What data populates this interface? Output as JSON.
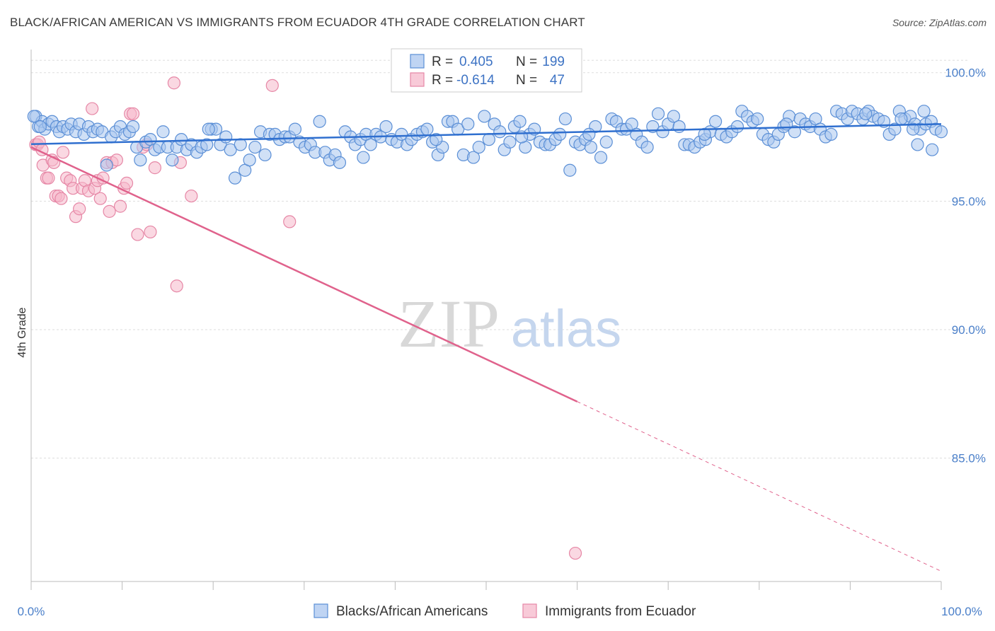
{
  "title": "BLACK/AFRICAN AMERICAN VS IMMIGRANTS FROM ECUADOR 4TH GRADE CORRELATION CHART",
  "source": "Source: ZipAtlas.com",
  "watermark": {
    "zip": "ZIP",
    "atlas": "atlas"
  },
  "colors": {
    "blue_fill": "#a9c6ef",
    "blue_stroke": "#5b8fd6",
    "blue_line": "#2f6fcf",
    "pink_fill": "#f6b8cb",
    "pink_stroke": "#e687a6",
    "pink_line": "#e0628c",
    "grid": "#dddddd",
    "tick_text": "#4a7fc9"
  },
  "legend": {
    "r_label": "R =",
    "n_label": "N =",
    "rows": [
      {
        "r": "0.405",
        "n": "199"
      },
      {
        "r": "-0.614",
        "n": "47"
      }
    ]
  },
  "chart_data": {
    "type": "scatter",
    "title": "BLACK/AFRICAN AMERICAN VS IMMIGRANTS FROM ECUADOR 4TH GRADE CORRELATION CHART",
    "xlabel": "",
    "ylabel": "4th Grade",
    "xlim": [
      0,
      100
    ],
    "ylim": [
      80.2,
      100.9
    ],
    "x_tick_labels": [
      "0.0%",
      "100.0%"
    ],
    "y_ticks": [
      85,
      90,
      95,
      100
    ],
    "y_tick_labels": [
      "85.0%",
      "90.0%",
      "95.0%",
      "100.0%"
    ],
    "grid": true,
    "legend_position": "top-center",
    "series": [
      {
        "name": "Blacks/African Americans",
        "trend": {
          "x": [
            0,
            100
          ],
          "y": [
            97.22,
            98.0
          ]
        },
        "points": [
          [
            0.5,
            98.3
          ],
          [
            0.8,
            97.9
          ],
          [
            1.2,
            98.1
          ],
          [
            1.5,
            97.8
          ],
          [
            1.9,
            98.0
          ],
          [
            2.3,
            98.1
          ],
          [
            2.8,
            97.9
          ],
          [
            3.1,
            97.7
          ],
          [
            3.5,
            97.9
          ],
          [
            4.0,
            97.8
          ],
          [
            4.4,
            98.0
          ],
          [
            4.9,
            97.7
          ],
          [
            5.3,
            98.0
          ],
          [
            5.8,
            97.6
          ],
          [
            6.3,
            97.9
          ],
          [
            6.8,
            97.7
          ],
          [
            7.3,
            97.8
          ],
          [
            7.8,
            97.7
          ],
          [
            8.3,
            96.4
          ],
          [
            8.8,
            97.5
          ],
          [
            9.3,
            97.7
          ],
          [
            9.8,
            97.9
          ],
          [
            10.3,
            97.6
          ],
          [
            10.8,
            97.7
          ],
          [
            11.2,
            97.9
          ],
          [
            11.6,
            97.1
          ],
          [
            12.0,
            96.6
          ],
          [
            12.6,
            97.3
          ],
          [
            13.1,
            97.4
          ],
          [
            13.6,
            97.0
          ],
          [
            14.1,
            97.1
          ],
          [
            14.5,
            97.7
          ],
          [
            15.0,
            97.1
          ],
          [
            15.5,
            96.6
          ],
          [
            16.0,
            97.1
          ],
          [
            16.5,
            97.4
          ],
          [
            17.1,
            97.0
          ],
          [
            17.6,
            97.2
          ],
          [
            18.2,
            96.9
          ],
          [
            18.7,
            97.1
          ],
          [
            19.3,
            97.2
          ],
          [
            19.8,
            97.8
          ],
          [
            20.3,
            97.8
          ],
          [
            20.8,
            97.2
          ],
          [
            21.4,
            97.5
          ],
          [
            21.9,
            97.0
          ],
          [
            22.4,
            95.9
          ],
          [
            23.0,
            97.2
          ],
          [
            23.5,
            96.2
          ],
          [
            24.0,
            96.6
          ],
          [
            24.6,
            97.1
          ],
          [
            25.2,
            97.7
          ],
          [
            25.7,
            96.8
          ],
          [
            26.2,
            97.6
          ],
          [
            26.8,
            97.6
          ],
          [
            27.3,
            97.4
          ],
          [
            27.9,
            97.5
          ],
          [
            28.4,
            97.5
          ],
          [
            29.0,
            97.8
          ],
          [
            29.5,
            97.3
          ],
          [
            30.1,
            97.1
          ],
          [
            30.7,
            97.2
          ],
          [
            31.2,
            96.9
          ],
          [
            31.7,
            98.1
          ],
          [
            32.3,
            96.9
          ],
          [
            32.8,
            96.6
          ],
          [
            33.4,
            96.8
          ],
          [
            33.9,
            96.5
          ],
          [
            34.5,
            97.7
          ],
          [
            35.1,
            97.5
          ],
          [
            35.6,
            97.2
          ],
          [
            36.2,
            97.4
          ],
          [
            36.8,
            97.6
          ],
          [
            37.3,
            97.2
          ],
          [
            37.9,
            97.6
          ],
          [
            38.4,
            97.5
          ],
          [
            39.0,
            97.9
          ],
          [
            39.6,
            97.4
          ],
          [
            40.2,
            97.3
          ],
          [
            40.7,
            97.6
          ],
          [
            41.3,
            97.2
          ],
          [
            41.8,
            97.4
          ],
          [
            42.4,
            97.6
          ],
          [
            43.0,
            97.7
          ],
          [
            43.5,
            97.8
          ],
          [
            44.1,
            97.3
          ],
          [
            44.7,
            96.8
          ],
          [
            45.2,
            97.1
          ],
          [
            45.8,
            98.1
          ],
          [
            46.3,
            98.1
          ],
          [
            46.9,
            97.8
          ],
          [
            47.5,
            96.8
          ],
          [
            48.0,
            98.0
          ],
          [
            48.6,
            96.7
          ],
          [
            49.2,
            97.1
          ],
          [
            49.8,
            98.3
          ],
          [
            50.3,
            97.4
          ],
          [
            50.9,
            98.0
          ],
          [
            51.5,
            97.7
          ],
          [
            52.0,
            97.0
          ],
          [
            52.6,
            97.3
          ],
          [
            53.1,
            97.9
          ],
          [
            53.7,
            98.1
          ],
          [
            54.3,
            97.1
          ],
          [
            54.8,
            97.6
          ],
          [
            55.3,
            97.8
          ],
          [
            55.9,
            97.3
          ],
          [
            56.5,
            97.2
          ],
          [
            57.0,
            97.2
          ],
          [
            57.6,
            97.4
          ],
          [
            58.1,
            97.6
          ],
          [
            58.7,
            98.2
          ],
          [
            59.2,
            96.2
          ],
          [
            59.8,
            97.3
          ],
          [
            60.3,
            97.2
          ],
          [
            60.9,
            97.4
          ],
          [
            61.5,
            97.1
          ],
          [
            62.0,
            97.9
          ],
          [
            62.6,
            96.7
          ],
          [
            63.2,
            97.3
          ],
          [
            63.8,
            98.2
          ],
          [
            64.3,
            98.1
          ],
          [
            64.9,
            97.8
          ],
          [
            65.4,
            97.8
          ],
          [
            66.0,
            98.0
          ],
          [
            66.5,
            97.6
          ],
          [
            67.1,
            97.3
          ],
          [
            67.7,
            97.1
          ],
          [
            68.3,
            97.9
          ],
          [
            68.9,
            98.4
          ],
          [
            69.4,
            97.7
          ],
          [
            70.0,
            98.0
          ],
          [
            70.6,
            98.3
          ],
          [
            71.2,
            97.9
          ],
          [
            71.8,
            97.2
          ],
          [
            72.3,
            97.2
          ],
          [
            72.9,
            97.1
          ],
          [
            73.5,
            97.3
          ],
          [
            74.1,
            97.4
          ],
          [
            74.6,
            97.7
          ],
          [
            75.2,
            98.1
          ],
          [
            75.8,
            97.6
          ],
          [
            76.4,
            97.5
          ],
          [
            77.0,
            97.7
          ],
          [
            77.6,
            97.9
          ],
          [
            78.1,
            98.5
          ],
          [
            78.7,
            98.3
          ],
          [
            79.3,
            98.1
          ],
          [
            79.8,
            98.2
          ],
          [
            80.4,
            97.6
          ],
          [
            81.0,
            97.4
          ],
          [
            81.6,
            97.3
          ],
          [
            82.1,
            97.6
          ],
          [
            82.7,
            97.9
          ],
          [
            83.3,
            98.3
          ],
          [
            83.9,
            97.7
          ],
          [
            84.5,
            98.2
          ],
          [
            85.1,
            98.0
          ],
          [
            85.6,
            97.9
          ],
          [
            86.2,
            98.2
          ],
          [
            86.7,
            97.8
          ],
          [
            87.3,
            97.5
          ],
          [
            87.9,
            97.6
          ],
          [
            88.5,
            98.5
          ],
          [
            89.1,
            98.4
          ],
          [
            89.7,
            98.2
          ],
          [
            90.2,
            98.5
          ],
          [
            90.8,
            98.4
          ],
          [
            91.4,
            98.2
          ],
          [
            92.0,
            98.5
          ],
          [
            92.5,
            98.3
          ],
          [
            93.1,
            98.2
          ],
          [
            93.7,
            98.1
          ],
          [
            94.3,
            97.6
          ],
          [
            94.9,
            97.8
          ],
          [
            95.4,
            98.5
          ],
          [
            96.0,
            98.2
          ],
          [
            96.6,
            98.3
          ],
          [
            97.1,
            98.0
          ],
          [
            97.7,
            97.8
          ],
          [
            98.3,
            98.0
          ],
          [
            98.9,
            98.1
          ],
          [
            99.4,
            97.8
          ],
          [
            0.3,
            98.3
          ],
          [
            1.0,
            97.9
          ],
          [
            19.5,
            97.8
          ],
          [
            36.5,
            96.7
          ],
          [
            44.5,
            97.4
          ],
          [
            53.9,
            97.5
          ],
          [
            61.3,
            97.6
          ],
          [
            74.0,
            97.6
          ],
          [
            83.0,
            98.0
          ],
          [
            91.7,
            98.4
          ],
          [
            95.6,
            98.2
          ],
          [
            96.9,
            97.8
          ],
          [
            97.4,
            97.2
          ],
          [
            98.1,
            98.5
          ],
          [
            99.0,
            97.0
          ],
          [
            100.0,
            97.7
          ]
        ]
      },
      {
        "name": "Immigrants from Ecuador",
        "trend": {
          "x": [
            0,
            60
          ],
          "y": [
            97.1,
            87.2
          ]
        },
        "trend_dashed": {
          "x": [
            60,
            100
          ],
          "y": [
            87.2,
            80.6
          ]
        },
        "points": [
          [
            0.5,
            97.2
          ],
          [
            0.7,
            97.2
          ],
          [
            0.9,
            97.3
          ],
          [
            1.2,
            97.0
          ],
          [
            1.3,
            96.4
          ],
          [
            1.7,
            95.9
          ],
          [
            1.9,
            95.9
          ],
          [
            2.3,
            96.6
          ],
          [
            2.5,
            96.5
          ],
          [
            2.7,
            95.2
          ],
          [
            3.0,
            95.2
          ],
          [
            3.3,
            95.1
          ],
          [
            3.5,
            96.9
          ],
          [
            3.9,
            95.9
          ],
          [
            4.3,
            95.8
          ],
          [
            4.6,
            95.5
          ],
          [
            4.9,
            94.4
          ],
          [
            5.3,
            94.7
          ],
          [
            5.6,
            95.5
          ],
          [
            5.9,
            95.8
          ],
          [
            6.3,
            95.4
          ],
          [
            6.7,
            98.6
          ],
          [
            7.0,
            95.5
          ],
          [
            7.3,
            95.8
          ],
          [
            7.6,
            95.1
          ],
          [
            7.9,
            95.9
          ],
          [
            8.3,
            96.5
          ],
          [
            8.6,
            94.6
          ],
          [
            8.9,
            96.5
          ],
          [
            9.4,
            96.6
          ],
          [
            9.8,
            94.8
          ],
          [
            10.2,
            95.5
          ],
          [
            10.5,
            95.7
          ],
          [
            10.9,
            98.4
          ],
          [
            11.2,
            98.4
          ],
          [
            11.7,
            93.7
          ],
          [
            12.3,
            97.1
          ],
          [
            12.7,
            97.2
          ],
          [
            13.1,
            93.8
          ],
          [
            13.6,
            96.3
          ],
          [
            15.7,
            99.6
          ],
          [
            16.0,
            91.7
          ],
          [
            16.4,
            96.5
          ],
          [
            17.6,
            95.2
          ],
          [
            26.5,
            99.5
          ],
          [
            28.4,
            94.2
          ],
          [
            59.8,
            81.3
          ]
        ]
      }
    ]
  },
  "bottom_legend": [
    "Blacks/African Americans",
    "Immigrants from Ecuador"
  ]
}
